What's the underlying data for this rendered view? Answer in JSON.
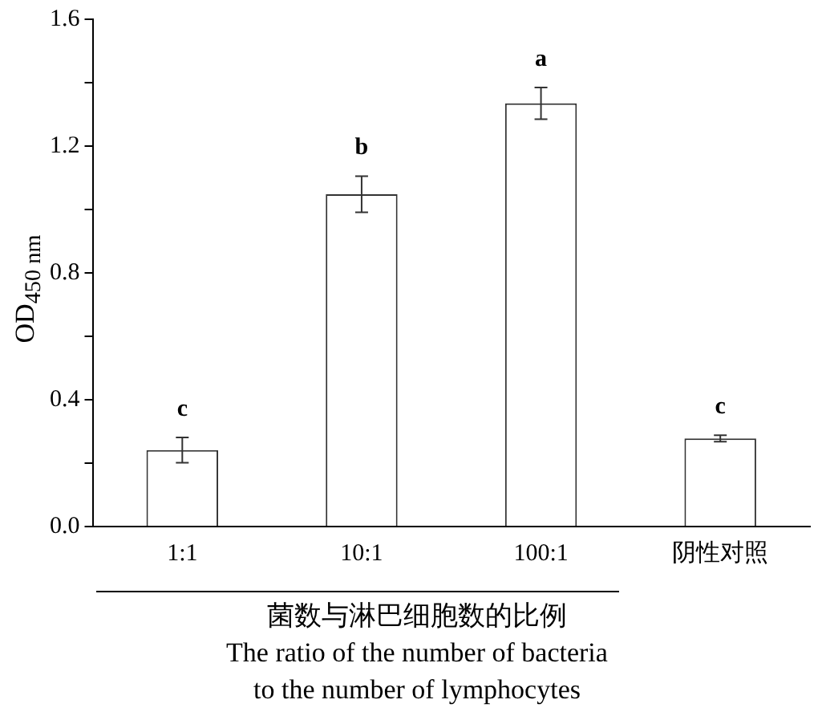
{
  "chart_data": {
    "type": "bar",
    "categories": [
      "1:1",
      "10:1",
      "100:1",
      "阴性对照"
    ],
    "values": [
      0.241,
      1.048,
      1.335,
      0.278
    ],
    "errors": [
      0.04,
      0.057,
      0.05,
      0.01
    ],
    "color": "#333333",
    "ylabel": "OD$_{450 nm}$",
    "xlabel": "菌数与淋巴细胞数的比例\nThe ratio of the number of bacteria\nto the number of lymphocytes",
    "ylim": [
      0,
      1.6
    ],
    "yticks": [
      {
        "value": 0,
        "label": "0.0"
      },
      {
        "value": 0.2,
        "label": null
      },
      {
        "value": 0.4,
        "label": "0.4"
      },
      {
        "value": 0.6,
        "label": null
      },
      {
        "value": 0.8,
        "label": "0.8"
      },
      {
        "value": 1.0,
        "label": null
      },
      {
        "value": 1.2,
        "label": "1.2"
      },
      {
        "value": 1.4,
        "label": null
      },
      {
        "value": 1.6,
        "label": "1.6"
      }
    ],
    "annotations": [
      "c",
      "b",
      "a",
      "c"
    ],
    "grid": false,
    "legend": false
  }
}
